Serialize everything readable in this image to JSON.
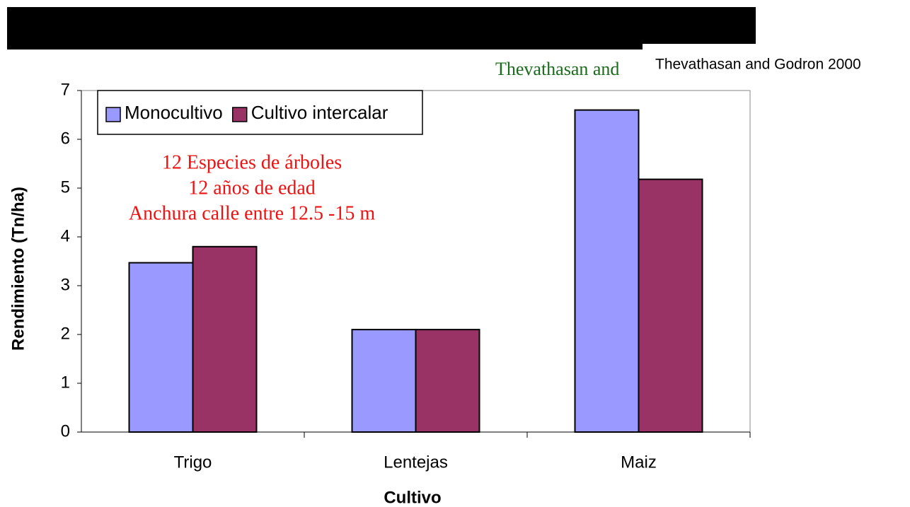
{
  "chart_data": {
    "type": "bar",
    "categories": [
      "Trigo",
      "Lentejas",
      "Maiz"
    ],
    "series": [
      {
        "name": "Monocultivo",
        "color": "#9999ff",
        "values": [
          3.47,
          2.1,
          6.6
        ]
      },
      {
        "name": "Cultivo intercalar",
        "color": "#993366",
        "values": [
          3.8,
          2.1,
          5.18
        ]
      }
    ],
    "ylim": [
      0,
      7
    ],
    "yticks": [
      0,
      1,
      2,
      3,
      4,
      5,
      6,
      7
    ],
    "y_label": "Rendimiento (Tn/ha)",
    "x_label": "Cultivo",
    "annotations": [
      "12 Especies de árboles",
      "12 años de edad",
      "Anchura calle entre 12.5 -15 m"
    ],
    "source_partial": "Thevathasan and",
    "source": "Thevathasan and Godron 2000",
    "legend": "top-left"
  }
}
